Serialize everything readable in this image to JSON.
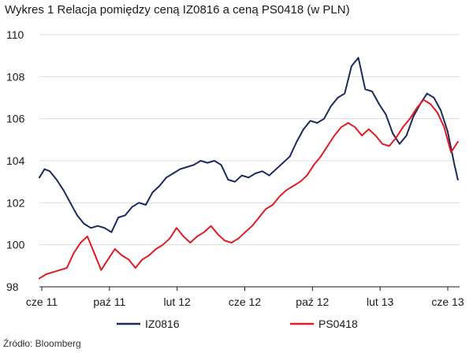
{
  "chart_data": {
    "type": "line",
    "title": "Wykres 1 Relacja pomiędzy ceną IZ0816 a ceną PS0418 (w PLN)",
    "source": "Źródło: Bloomberg",
    "xlabel": "",
    "ylabel": "",
    "x_tick_labels": [
      "cze 11",
      "paź 11",
      "lut 12",
      "cze 12",
      "paź 12",
      "lut 13",
      "cze 13"
    ],
    "y_ticks": [
      98,
      100,
      102,
      104,
      106,
      108,
      110
    ],
    "ylim": [
      98,
      110
    ],
    "xlim": [
      0,
      24.5
    ],
    "grid": "horizontal",
    "legend_position": "bottom",
    "series": [
      {
        "name": "IZ0816",
        "color": "#1b2a5c",
        "x": [
          0,
          0.3,
          0.6,
          1.0,
          1.4,
          1.8,
          2.2,
          2.6,
          3.0,
          3.4,
          3.8,
          4.2,
          4.6,
          5.0,
          5.4,
          5.8,
          6.2,
          6.6,
          7.0,
          7.4,
          7.8,
          8.2,
          8.6,
          9.0,
          9.4,
          9.8,
          10.2,
          10.6,
          11.0,
          11.4,
          11.8,
          12.2,
          12.6,
          13.0,
          13.4,
          13.8,
          14.2,
          14.6,
          15.0,
          15.4,
          15.8,
          16.2,
          16.6,
          17.0,
          17.4,
          17.8,
          18.2,
          18.6,
          19.0,
          19.4,
          19.8,
          20.2,
          20.6,
          21.0,
          21.4,
          21.8,
          22.2,
          22.6,
          23.0,
          23.4,
          23.8,
          24.2,
          24.4
        ],
        "values": [
          103.2,
          103.6,
          103.5,
          103.1,
          102.6,
          102.0,
          101.4,
          101.0,
          100.8,
          100.9,
          100.8,
          100.6,
          101.3,
          101.4,
          101.8,
          102.0,
          101.9,
          102.5,
          102.8,
          103.2,
          103.4,
          103.6,
          103.7,
          103.8,
          104.0,
          103.9,
          104.0,
          103.8,
          103.1,
          103.0,
          103.3,
          103.2,
          103.4,
          103.5,
          103.3,
          103.6,
          103.9,
          104.2,
          104.9,
          105.5,
          105.9,
          105.8,
          106.0,
          106.6,
          107.0,
          107.2,
          108.5,
          108.9,
          107.4,
          107.3,
          106.7,
          106.2,
          105.3,
          104.8,
          105.2,
          106.1,
          106.7,
          107.2,
          107.0,
          106.4,
          105.4,
          103.8,
          103.1
        ]
      },
      {
        "name": "PS0418",
        "color": "#e01b22",
        "x": [
          0,
          0.4,
          0.8,
          1.2,
          1.6,
          2.0,
          2.4,
          2.8,
          3.2,
          3.6,
          4.0,
          4.4,
          4.8,
          5.2,
          5.6,
          6.0,
          6.4,
          6.8,
          7.2,
          7.6,
          8.0,
          8.4,
          8.8,
          9.2,
          9.6,
          10.0,
          10.4,
          10.8,
          11.2,
          11.6,
          12.0,
          12.4,
          12.8,
          13.2,
          13.6,
          14.0,
          14.4,
          14.8,
          15.2,
          15.6,
          16.0,
          16.4,
          16.8,
          17.2,
          17.6,
          18.0,
          18.4,
          18.8,
          19.2,
          19.6,
          20.0,
          20.4,
          20.8,
          21.2,
          21.6,
          22.0,
          22.4,
          22.8,
          23.2,
          23.6,
          24.0,
          24.4
        ],
        "values": [
          98.4,
          98.6,
          98.7,
          98.8,
          98.9,
          99.6,
          100.1,
          100.4,
          99.6,
          98.8,
          99.3,
          99.8,
          99.5,
          99.3,
          98.9,
          99.3,
          99.5,
          99.8,
          100.0,
          100.3,
          100.8,
          100.4,
          100.1,
          100.4,
          100.6,
          100.9,
          100.5,
          100.2,
          100.1,
          100.3,
          100.6,
          100.9,
          101.3,
          101.7,
          101.9,
          102.3,
          102.6,
          102.8,
          103.0,
          103.3,
          103.8,
          104.2,
          104.7,
          105.2,
          105.6,
          105.8,
          105.6,
          105.2,
          105.5,
          105.2,
          104.8,
          104.7,
          105.1,
          105.6,
          106.0,
          106.5,
          106.9,
          106.7,
          106.3,
          105.6,
          104.4,
          104.9
        ]
      }
    ]
  }
}
